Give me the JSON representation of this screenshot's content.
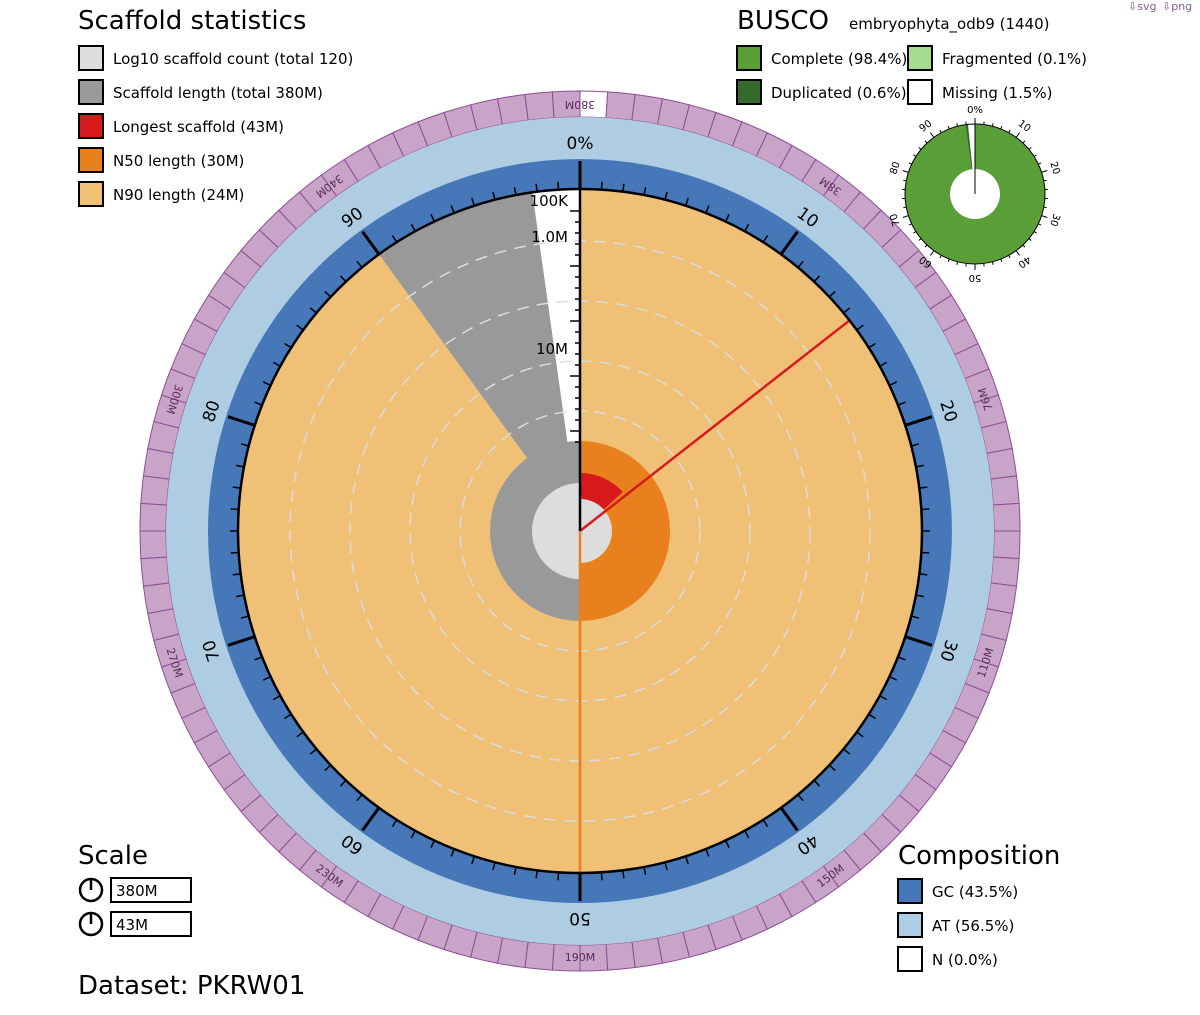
{
  "downloads": {
    "svg": "⇩svg",
    "png": "⇩png"
  },
  "colors": {
    "log_count": "#dddddd",
    "scaffold_length": "#999999",
    "longest": "#d7191c",
    "n50": "#e8801e",
    "n90": "#f0c077",
    "gc": "#4577b9",
    "at": "#aecde2",
    "n": "#ffffff",
    "busco_complete": "#5a9e37",
    "busco_duplicated": "#356b2a",
    "busco_fragmented": "#a6dc8f",
    "busco_missing": "#ffffff",
    "scale_ring": "#c8a4c8",
    "scale_ring_stroke": "#8e4c96"
  },
  "scaffold_stats": {
    "title": "Scaffold statistics",
    "legend": [
      {
        "key": "log_count",
        "label": "Log10 scaffold count (total 120)"
      },
      {
        "key": "scaffold_length",
        "label": "Scaffold length (total 380M)"
      },
      {
        "key": "longest",
        "label": "Longest scaffold (43M)"
      },
      {
        "key": "n50",
        "label": "N50 length (30M)"
      },
      {
        "key": "n90",
        "label": "N90 length (24M)"
      }
    ]
  },
  "busco": {
    "title": "BUSCO",
    "lineage": "embryophyta_odb9 (1440)",
    "legend": [
      {
        "key": "busco_complete",
        "label": "Complete (98.4%)"
      },
      {
        "key": "busco_fragmented",
        "label": "Fragmented (0.1%)"
      },
      {
        "key": "busco_duplicated",
        "label": "Duplicated (0.6%)"
      },
      {
        "key": "busco_missing",
        "label": "Missing (1.5%)"
      }
    ],
    "ticks": [
      "0%",
      "10",
      "20",
      "30",
      "40",
      "50",
      "60",
      "70",
      "80",
      "90"
    ]
  },
  "scale": {
    "title": "Scale",
    "items": [
      "380M",
      "43M"
    ]
  },
  "composition": {
    "title": "Composition",
    "legend": [
      {
        "key": "gc",
        "label": "GC (43.5%)"
      },
      {
        "key": "at",
        "label": "AT (56.5%)"
      },
      {
        "key": "n",
        "label": "N (0.0%)"
      }
    ]
  },
  "dataset": "Dataset: PKRW01",
  "chart_data": {
    "type": "snail",
    "total_length_M": 380,
    "scaffold_count": 120,
    "longest_scaffold_M": 43,
    "n50_M": 30,
    "n90_M": 24,
    "percent_ticks": [
      "0%",
      "10",
      "20",
      "30",
      "40",
      "50",
      "60",
      "70",
      "80",
      "90"
    ],
    "length_ring_labels": [
      "380M",
      "38M",
      "76M",
      "110M",
      "150M",
      "190M",
      "230M",
      "270M",
      "300M",
      "340M"
    ],
    "radial_scale_labels": [
      "100K",
      "1.0M",
      "10M"
    ],
    "composition": {
      "gc_percent": 43.5,
      "at_percent": 56.5,
      "n_percent": 0.0
    },
    "busco": {
      "complete_percent": 98.4,
      "duplicated_percent": 0.6,
      "fragmented_percent": 0.1,
      "missing_percent": 1.5
    }
  }
}
